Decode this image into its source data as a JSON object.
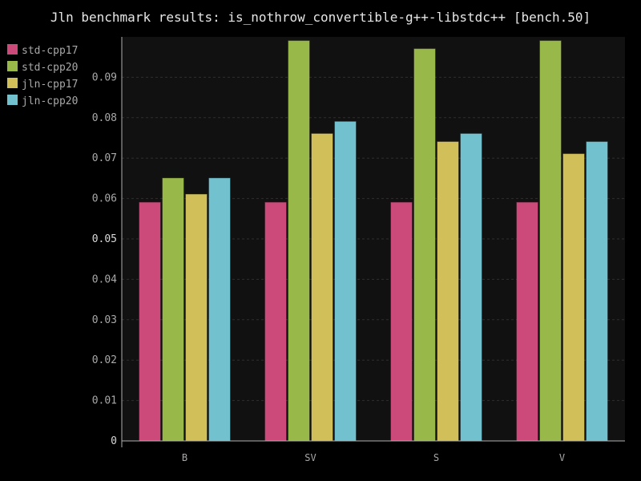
{
  "chart_data": {
    "type": "bar",
    "title": "Jln benchmark results: is_nothrow_convertible-g++-libstdc++ [bench.50]",
    "xlabel": "",
    "ylabel": "",
    "categories": [
      "B",
      "SV",
      "S",
      "V"
    ],
    "series": [
      {
        "name": "std-cpp17",
        "color": "#cc4a7a",
        "values": [
          0.059,
          0.059,
          0.059,
          0.059
        ]
      },
      {
        "name": "std-cpp20",
        "color": "#99b84a",
        "values": [
          0.065,
          0.099,
          0.097,
          0.099
        ]
      },
      {
        "name": "jln-cpp17",
        "color": "#d1c05a",
        "values": [
          0.061,
          0.076,
          0.074,
          0.071
        ]
      },
      {
        "name": "jln-cpp20",
        "color": "#71c1cf",
        "values": [
          0.065,
          0.079,
          0.076,
          0.074
        ]
      }
    ],
    "ylim": [
      0,
      0.1
    ],
    "yticks": [
      "0",
      "0.01",
      "0.02",
      "0.03",
      "0.04",
      "0.05",
      "0.06",
      "0.07",
      "0.08",
      "0.09"
    ],
    "major_ticks": [
      "0",
      "0.05"
    ],
    "grid": true,
    "legend_position": "top-left",
    "colors": {
      "background": "#000000",
      "plot_background": "#111111",
      "grid": "#2f2f2f",
      "axis": "#b0b0b0"
    }
  }
}
